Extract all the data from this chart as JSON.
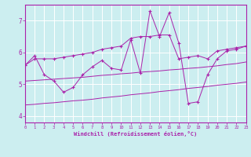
{
  "xlabel": "Windchill (Refroidissement éolien,°C)",
  "xlim": [
    0,
    23
  ],
  "ylim": [
    3.8,
    7.5
  ],
  "xticks": [
    0,
    1,
    2,
    3,
    4,
    5,
    6,
    7,
    8,
    9,
    10,
    11,
    12,
    13,
    14,
    15,
    16,
    17,
    18,
    19,
    20,
    21,
    22,
    23
  ],
  "yticks": [
    4,
    5,
    6,
    7
  ],
  "bg_color": "#cceef0",
  "line_color": "#aa22aa",
  "grid_color": "#ffffff",
  "series_actual": {
    "x": [
      0,
      1,
      2,
      3,
      4,
      5,
      6,
      7,
      8,
      9,
      10,
      11,
      12,
      13,
      14,
      15,
      16,
      17,
      18,
      19,
      20,
      21,
      22,
      23
    ],
    "y": [
      5.6,
      5.9,
      5.3,
      5.1,
      4.75,
      4.9,
      5.3,
      5.55,
      5.75,
      5.5,
      5.45,
      6.4,
      5.35,
      7.3,
      6.5,
      7.25,
      6.3,
      4.4,
      4.45,
      5.3,
      5.8,
      6.05,
      6.1,
      6.2
    ]
  },
  "series_max": {
    "x": [
      0,
      1,
      2,
      3,
      4,
      5,
      6,
      7,
      8,
      9,
      10,
      11,
      12,
      13,
      14,
      15,
      16,
      17,
      18,
      19,
      20,
      21,
      22,
      23
    ],
    "y": [
      5.6,
      5.8,
      5.8,
      5.8,
      5.85,
      5.9,
      5.95,
      6.0,
      6.1,
      6.15,
      6.2,
      6.45,
      6.5,
      6.5,
      6.55,
      6.55,
      5.8,
      5.85,
      5.9,
      5.8,
      6.05,
      6.1,
      6.15,
      6.2
    ]
  },
  "series_mean": {
    "x": [
      0,
      1,
      2,
      3,
      4,
      5,
      6,
      7,
      8,
      9,
      10,
      11,
      12,
      13,
      14,
      15,
      16,
      17,
      18,
      19,
      20,
      21,
      22,
      23
    ],
    "y": [
      5.1,
      5.12,
      5.14,
      5.16,
      5.18,
      5.2,
      5.22,
      5.25,
      5.28,
      5.3,
      5.33,
      5.35,
      5.38,
      5.4,
      5.42,
      5.45,
      5.47,
      5.5,
      5.52,
      5.55,
      5.58,
      5.62,
      5.65,
      5.7
    ]
  },
  "series_min": {
    "x": [
      0,
      1,
      2,
      3,
      4,
      5,
      6,
      7,
      8,
      9,
      10,
      11,
      12,
      13,
      14,
      15,
      16,
      17,
      18,
      19,
      20,
      21,
      22,
      23
    ],
    "y": [
      4.35,
      4.37,
      4.4,
      4.42,
      4.45,
      4.48,
      4.5,
      4.53,
      4.57,
      4.6,
      4.63,
      4.67,
      4.7,
      4.73,
      4.77,
      4.8,
      4.83,
      4.87,
      4.9,
      4.93,
      4.97,
      5.0,
      5.03,
      5.07
    ]
  }
}
